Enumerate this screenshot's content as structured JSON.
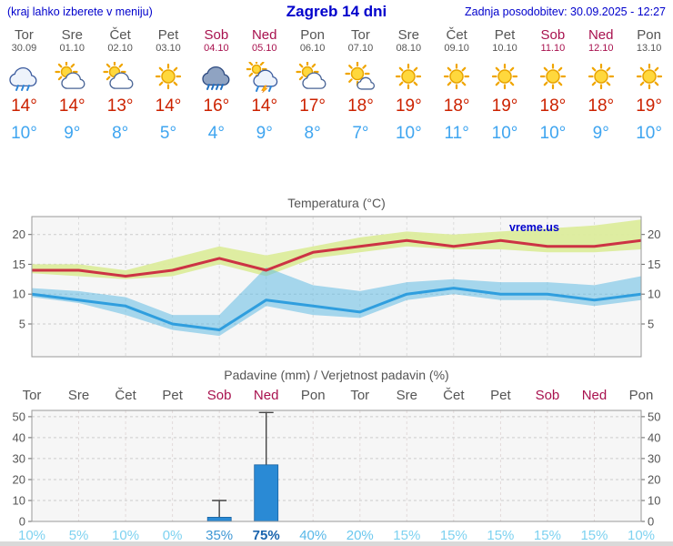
{
  "header": {
    "left": "(kraj lahko izberete v meniju)",
    "title": "Zagreb 14 dni",
    "updated": "Zadnja posodobitev: 30.09.2025 - 12:27"
  },
  "colors": {
    "header_blue": "#0000cc",
    "weekday": "#555555",
    "weekend": "#a8114e",
    "tmax": "#cc2200",
    "tmin": "#3fa5f0",
    "tmax_line": "#cc3344",
    "tmin_line": "#2f9ede",
    "band_warm": "#dcec9c",
    "band_cold": "#63bce4",
    "bar": "#2a8ad5"
  },
  "days": [
    {
      "name": "Tor",
      "date": "30.09",
      "icon": "rain",
      "tmax": "14°",
      "tmin": "10°",
      "weekend": false
    },
    {
      "name": "Sre",
      "date": "01.10",
      "icon": "partly",
      "tmax": "14°",
      "tmin": "9°",
      "weekend": false
    },
    {
      "name": "Čet",
      "date": "02.10",
      "icon": "partly",
      "tmax": "13°",
      "tmin": "8°",
      "weekend": false
    },
    {
      "name": "Pet",
      "date": "03.10",
      "icon": "sun",
      "tmax": "14°",
      "tmin": "5°",
      "weekend": false
    },
    {
      "name": "Sob",
      "date": "04.10",
      "icon": "heavy-rain",
      "tmax": "16°",
      "tmin": "4°",
      "weekend": true
    },
    {
      "name": "Ned",
      "date": "05.10",
      "icon": "storm-shower",
      "tmax": "14°",
      "tmin": "9°",
      "weekend": true
    },
    {
      "name": "Pon",
      "date": "06.10",
      "icon": "partly",
      "tmax": "17°",
      "tmin": "8°",
      "weekend": false
    },
    {
      "name": "Tor",
      "date": "07.10",
      "icon": "mostly-sunny",
      "tmax": "18°",
      "tmin": "7°",
      "weekend": false
    },
    {
      "name": "Sre",
      "date": "08.10",
      "icon": "sun",
      "tmax": "19°",
      "tmin": "10°",
      "weekend": false
    },
    {
      "name": "Čet",
      "date": "09.10",
      "icon": "sun",
      "tmax": "18°",
      "tmin": "11°",
      "weekend": false
    },
    {
      "name": "Pet",
      "date": "10.10",
      "icon": "sun",
      "tmax": "19°",
      "tmin": "10°",
      "weekend": false
    },
    {
      "name": "Sob",
      "date": "11.10",
      "icon": "sun",
      "tmax": "18°",
      "tmin": "10°",
      "weekend": true
    },
    {
      "name": "Ned",
      "date": "12.10",
      "icon": "sun",
      "tmax": "18°",
      "tmin": "9°",
      "weekend": true
    },
    {
      "name": "Pon",
      "date": "13.10",
      "icon": "sun",
      "tmax": "19°",
      "tmin": "10°",
      "weekend": false
    }
  ],
  "chart_data": [
    {
      "type": "area",
      "title": "Temperatura (°C)",
      "watermark": "vreme.us",
      "categories": [
        "Tor 30.09",
        "Sre 01.10",
        "Čet 02.10",
        "Pet 03.10",
        "Sob 04.10",
        "Ned 05.10",
        "Pon 06.10",
        "Tor 07.10",
        "Sre 08.10",
        "Čet 09.10",
        "Pet 10.10",
        "Sob 11.10",
        "Ned 12.10",
        "Pon 13.10"
      ],
      "ylim": [
        -0.5,
        23
      ],
      "yticks": [
        5,
        10,
        15,
        20
      ],
      "series": [
        {
          "name": "tmax",
          "values": [
            14,
            14,
            13,
            14,
            16,
            14,
            17,
            18,
            19,
            18,
            19,
            18,
            18,
            19
          ]
        },
        {
          "name": "tmax_range_high",
          "values": [
            15,
            15,
            14,
            16,
            18,
            16.5,
            18,
            19.5,
            20.5,
            20,
            20.5,
            21,
            21.5,
            22.5
          ]
        },
        {
          "name": "tmax_range_low",
          "values": [
            13.5,
            13,
            12.5,
            13,
            15,
            13,
            16,
            17,
            18,
            17.5,
            17.5,
            17,
            17,
            17.5
          ]
        },
        {
          "name": "tmin",
          "values": [
            10,
            9,
            8,
            5,
            4,
            9,
            8,
            7,
            10,
            11,
            10,
            10,
            9,
            10
          ]
        },
        {
          "name": "tmin_range_high",
          "values": [
            11,
            10.5,
            9.5,
            6.5,
            6.5,
            14.5,
            11.5,
            10.5,
            12,
            12.5,
            12,
            12,
            11.5,
            13
          ]
        },
        {
          "name": "tmin_range_low",
          "values": [
            9.5,
            8.5,
            6.5,
            4,
            3,
            8,
            6.5,
            6,
            9,
            10,
            9,
            9,
            8,
            9
          ]
        }
      ]
    },
    {
      "type": "bar",
      "title": "Padavine (mm) / Verjetnost padavin (%)",
      "categories": [
        "Tor",
        "Sre",
        "Čet",
        "Pet",
        "Sob",
        "Ned",
        "Pon",
        "Tor",
        "Sre",
        "Čet",
        "Pet",
        "Sob",
        "Ned",
        "Pon"
      ],
      "weekend": [
        false,
        false,
        false,
        false,
        true,
        true,
        false,
        false,
        false,
        false,
        false,
        true,
        true,
        false
      ],
      "ylim": [
        0,
        53
      ],
      "yticks": [
        0,
        10,
        20,
        30,
        40,
        50
      ],
      "values": [
        0,
        0,
        0,
        0,
        2,
        27,
        0,
        0,
        0,
        0,
        0,
        0,
        0,
        0
      ],
      "whisker_high": [
        0,
        0,
        0,
        0,
        10,
        52,
        0,
        0,
        0,
        0,
        0,
        0,
        0,
        0
      ],
      "whisker_low": [
        0,
        0,
        0,
        0,
        0.5,
        1,
        0,
        0,
        0,
        0,
        0,
        0,
        0,
        0
      ],
      "probabilities": [
        "10%",
        "5%",
        "10%",
        "0%",
        "35%",
        "75%",
        "40%",
        "20%",
        "15%",
        "15%",
        "15%",
        "15%",
        "15%",
        "10%"
      ],
      "prob_colors": [
        "#7ed2f0",
        "#7ed2f0",
        "#7ed2f0",
        "#7ed2f0",
        "#3e97d4",
        "#1a64ad",
        "#58b8e8",
        "#6cc8ee",
        "#7ed2f0",
        "#7ed2f0",
        "#7ed2f0",
        "#7ed2f0",
        "#7ed2f0",
        "#7ed2f0"
      ],
      "prob_bold": [
        false,
        false,
        false,
        false,
        false,
        true,
        false,
        false,
        false,
        false,
        false,
        false,
        false,
        false
      ]
    }
  ]
}
